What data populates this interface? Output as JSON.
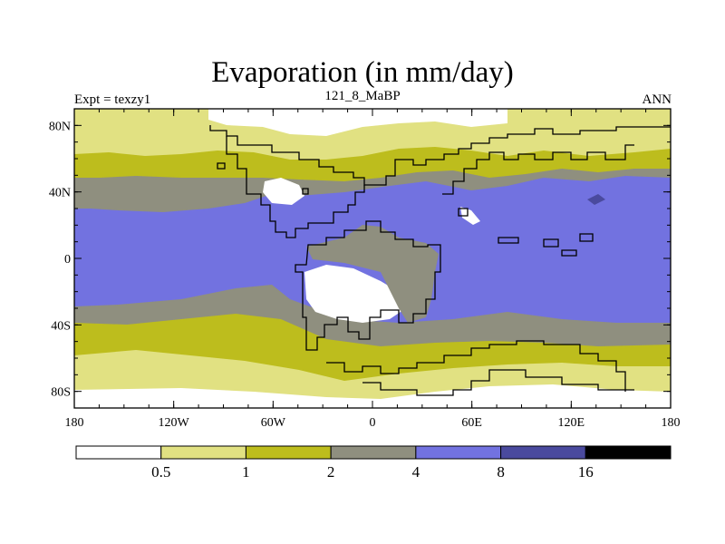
{
  "title": "Evaporation (in mm/day)",
  "subtitle": {
    "left": "Expt = texzy1",
    "center": "121_8_MaBP",
    "right": "ANN"
  },
  "map": {
    "lon_range": [
      -180,
      180
    ],
    "lat_range": [
      -90,
      90
    ],
    "x_ticks": [
      {
        "lon": -180,
        "label": "180"
      },
      {
        "lon": -120,
        "label": "120W"
      },
      {
        "lon": -60,
        "label": "60W"
      },
      {
        "lon": 0,
        "label": "0"
      },
      {
        "lon": 60,
        "label": "60E"
      },
      {
        "lon": 120,
        "label": "120E"
      },
      {
        "lon": 180,
        "label": "180"
      }
    ],
    "y_ticks": [
      {
        "lat": 80,
        "label": "80N"
      },
      {
        "lat": 40,
        "label": "40N"
      },
      {
        "lat": 0,
        "label": "0"
      },
      {
        "lat": -40,
        "label": "40S"
      },
      {
        "lat": -80,
        "label": "80S"
      }
    ]
  },
  "colorbar": {
    "colors": [
      "#ffffff",
      "#e1e182",
      "#bdbd1d",
      "#8f8f7f",
      "#7272e0",
      "#4a4a9e",
      "#000000"
    ],
    "labels": [
      "0.5",
      "1",
      "2",
      "4",
      "8",
      "16"
    ]
  }
}
